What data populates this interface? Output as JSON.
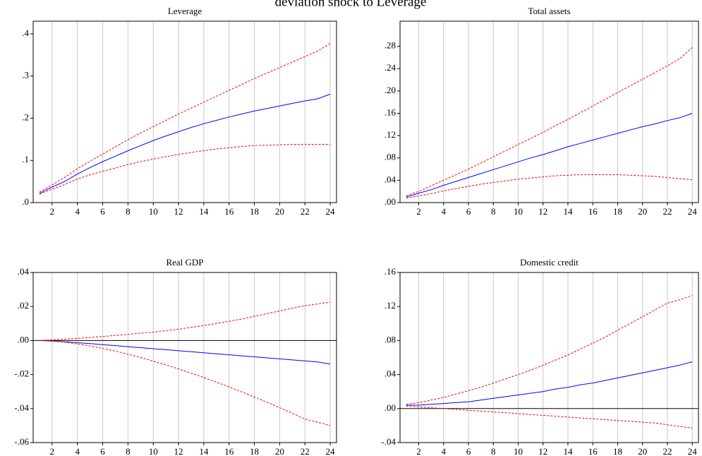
{
  "title": "deviation shock to Leverage",
  "chart_data": [
    {
      "type": "line",
      "title": "Leverage",
      "x": [
        1,
        2,
        3,
        4,
        5,
        6,
        7,
        8,
        9,
        10,
        11,
        12,
        13,
        14,
        15,
        16,
        17,
        18,
        19,
        20,
        21,
        22,
        23,
        24
      ],
      "series": [
        {
          "color": "#ff0000",
          "dashed": true,
          "values": [
            0.025,
            0.042,
            0.06,
            0.08,
            0.098,
            0.115,
            0.132,
            0.149,
            0.165,
            0.18,
            0.195,
            0.21,
            0.224,
            0.238,
            0.252,
            0.266,
            0.28,
            0.294,
            0.307,
            0.32,
            0.333,
            0.346,
            0.359,
            0.377
          ]
        },
        {
          "color": "#0000ff",
          "dashed": false,
          "values": [
            0.022,
            0.037,
            0.05,
            0.068,
            0.083,
            0.097,
            0.11,
            0.123,
            0.135,
            0.147,
            0.158,
            0.168,
            0.178,
            0.187,
            0.195,
            0.203,
            0.21,
            0.217,
            0.223,
            0.229,
            0.235,
            0.241,
            0.246,
            0.257
          ]
        },
        {
          "color": "#ff0000",
          "dashed": true,
          "values": [
            0.02,
            0.032,
            0.043,
            0.056,
            0.066,
            0.074,
            0.082,
            0.09,
            0.097,
            0.103,
            0.109,
            0.114,
            0.119,
            0.123,
            0.127,
            0.13,
            0.133,
            0.135,
            0.136,
            0.137,
            0.138,
            0.138,
            0.138,
            0.138
          ]
        }
      ],
      "xlim": [
        0.5,
        24.5
      ],
      "xticks": [
        2,
        4,
        6,
        8,
        10,
        12,
        14,
        16,
        18,
        20,
        22,
        24
      ],
      "ylim": [
        0,
        0.43
      ],
      "yticks": [
        {
          "value": 0,
          "label": ".0"
        },
        {
          "value": 0.1,
          "label": ".1"
        },
        {
          "value": 0.2,
          "label": ".2"
        },
        {
          "value": 0.3,
          "label": ".3"
        },
        {
          "value": 0.4,
          "label": ".4"
        }
      ],
      "grid": true,
      "zero_line": false
    },
    {
      "type": "line",
      "title": "Total assets",
      "x": [
        1,
        2,
        3,
        4,
        5,
        6,
        7,
        8,
        9,
        10,
        11,
        12,
        13,
        14,
        15,
        16,
        17,
        18,
        19,
        20,
        21,
        22,
        23,
        24
      ],
      "series": [
        {
          "color": "#ff0000",
          "dashed": true,
          "values": [
            0.012,
            0.02,
            0.03,
            0.04,
            0.05,
            0.06,
            0.071,
            0.082,
            0.093,
            0.104,
            0.115,
            0.126,
            0.138,
            0.149,
            0.161,
            0.173,
            0.185,
            0.197,
            0.209,
            0.221,
            0.233,
            0.245,
            0.258,
            0.278
          ]
        },
        {
          "color": "#0000ff",
          "dashed": false,
          "values": [
            0.01,
            0.017,
            0.023,
            0.031,
            0.038,
            0.045,
            0.052,
            0.059,
            0.066,
            0.073,
            0.08,
            0.086,
            0.093,
            0.1,
            0.106,
            0.112,
            0.118,
            0.124,
            0.13,
            0.136,
            0.141,
            0.147,
            0.152,
            0.16
          ]
        },
        {
          "color": "#ff0000",
          "dashed": true,
          "values": [
            0.008,
            0.012,
            0.016,
            0.021,
            0.025,
            0.029,
            0.033,
            0.036,
            0.039,
            0.042,
            0.044,
            0.046,
            0.048,
            0.049,
            0.05,
            0.05,
            0.05,
            0.05,
            0.049,
            0.048,
            0.047,
            0.045,
            0.043,
            0.041
          ]
        }
      ],
      "xlim": [
        0.5,
        24.5
      ],
      "xticks": [
        2,
        4,
        6,
        8,
        10,
        12,
        14,
        16,
        18,
        20,
        22,
        24
      ],
      "ylim": [
        0,
        0.325
      ],
      "yticks": [
        {
          "value": 0,
          "label": ".00"
        },
        {
          "value": 0.04,
          "label": ".04"
        },
        {
          "value": 0.08,
          "label": ".08"
        },
        {
          "value": 0.12,
          "label": ".12"
        },
        {
          "value": 0.16,
          "label": ".16"
        },
        {
          "value": 0.2,
          "label": ".20"
        },
        {
          "value": 0.24,
          "label": ".24"
        },
        {
          "value": 0.28,
          "label": ".28"
        }
      ],
      "grid": true,
      "zero_line": false
    },
    {
      "type": "line",
      "title": "Real GDP",
      "x": [
        1,
        2,
        3,
        4,
        5,
        6,
        7,
        8,
        9,
        10,
        11,
        12,
        13,
        14,
        15,
        16,
        17,
        18,
        19,
        20,
        21,
        22,
        23,
        24
      ],
      "series": [
        {
          "color": "#ff0000",
          "dashed": true,
          "values": [
            0,
            0.0004,
            0.0008,
            0.0013,
            0.0018,
            0.0024,
            0.003,
            0.0036,
            0.0043,
            0.005,
            0.0058,
            0.0067,
            0.0077,
            0.0088,
            0.01,
            0.0113,
            0.0127,
            0.0142,
            0.0158,
            0.0174,
            0.019,
            0.0205,
            0.0215,
            0.0225
          ]
        },
        {
          "color": "#0000ff",
          "dashed": false,
          "values": [
            0,
            -0.0003,
            -0.0008,
            -0.0013,
            -0.0018,
            -0.0024,
            -0.003,
            -0.0036,
            -0.0042,
            -0.0048,
            -0.0054,
            -0.006,
            -0.0066,
            -0.0072,
            -0.0078,
            -0.0084,
            -0.009,
            -0.0096,
            -0.0102,
            -0.0108,
            -0.0114,
            -0.012,
            -0.0126,
            -0.0138
          ]
        },
        {
          "color": "#ff0000",
          "dashed": true,
          "values": [
            0,
            -0.0003,
            -0.001,
            -0.002,
            -0.0032,
            -0.0046,
            -0.0062,
            -0.008,
            -0.01,
            -0.0121,
            -0.0143,
            -0.0167,
            -0.0192,
            -0.0218,
            -0.0245,
            -0.0273,
            -0.0302,
            -0.0332,
            -0.0363,
            -0.0395,
            -0.0428,
            -0.0462,
            -0.048,
            -0.05
          ]
        }
      ],
      "xlim": [
        0.5,
        24.5
      ],
      "xticks": [
        2,
        4,
        6,
        8,
        10,
        12,
        14,
        16,
        18,
        20,
        22,
        24
      ],
      "ylim": [
        -0.06,
        0.04
      ],
      "yticks": [
        {
          "value": -0.06,
          "label": "-.06"
        },
        {
          "value": -0.04,
          "label": "-.04"
        },
        {
          "value": -0.02,
          "label": "-.02"
        },
        {
          "value": 0,
          "label": ".00"
        },
        {
          "value": 0.02,
          "label": ".02"
        },
        {
          "value": 0.04,
          "label": ".04"
        }
      ],
      "grid": true,
      "zero_line": true
    },
    {
      "type": "line",
      "title": "Domestic credit",
      "x": [
        1,
        2,
        3,
        4,
        5,
        6,
        7,
        8,
        9,
        10,
        11,
        12,
        13,
        14,
        15,
        16,
        17,
        18,
        19,
        20,
        21,
        22,
        23,
        24
      ],
      "series": [
        {
          "color": "#ff0000",
          "dashed": true,
          "values": [
            0.005,
            0.007,
            0.01,
            0.013,
            0.017,
            0.021,
            0.025,
            0.03,
            0.035,
            0.04,
            0.045,
            0.051,
            0.057,
            0.063,
            0.07,
            0.077,
            0.084,
            0.092,
            0.1,
            0.108,
            0.116,
            0.124,
            0.128,
            0.133
          ]
        },
        {
          "color": "#0000ff",
          "dashed": false,
          "values": [
            0.004,
            0.004,
            0.005,
            0.006,
            0.007,
            0.008,
            0.01,
            0.012,
            0.014,
            0.016,
            0.018,
            0.02,
            0.023,
            0.025,
            0.028,
            0.03,
            0.033,
            0.036,
            0.039,
            0.042,
            0.045,
            0.048,
            0.051,
            0.055
          ]
        },
        {
          "color": "#ff0000",
          "dashed": true,
          "values": [
            0.003,
            0.002,
            0.001,
            0,
            -0.001,
            -0.002,
            -0.003,
            -0.004,
            -0.005,
            -0.006,
            -0.007,
            -0.008,
            -0.009,
            -0.01,
            -0.011,
            -0.012,
            -0.013,
            -0.014,
            -0.015,
            -0.016,
            -0.017,
            -0.019,
            -0.021,
            -0.023
          ]
        }
      ],
      "xlim": [
        0.5,
        24.5
      ],
      "xticks": [
        2,
        4,
        6,
        8,
        10,
        12,
        14,
        16,
        18,
        20,
        22,
        24
      ],
      "ylim": [
        -0.04,
        0.16
      ],
      "yticks": [
        {
          "value": -0.04,
          "label": "-.04"
        },
        {
          "value": 0,
          "label": ".00"
        },
        {
          "value": 0.04,
          "label": ".04"
        },
        {
          "value": 0.08,
          "label": ".08"
        },
        {
          "value": 0.12,
          "label": ".12"
        },
        {
          "value": 0.16,
          "label": ".16"
        }
      ],
      "grid": true,
      "zero_line": true
    }
  ]
}
